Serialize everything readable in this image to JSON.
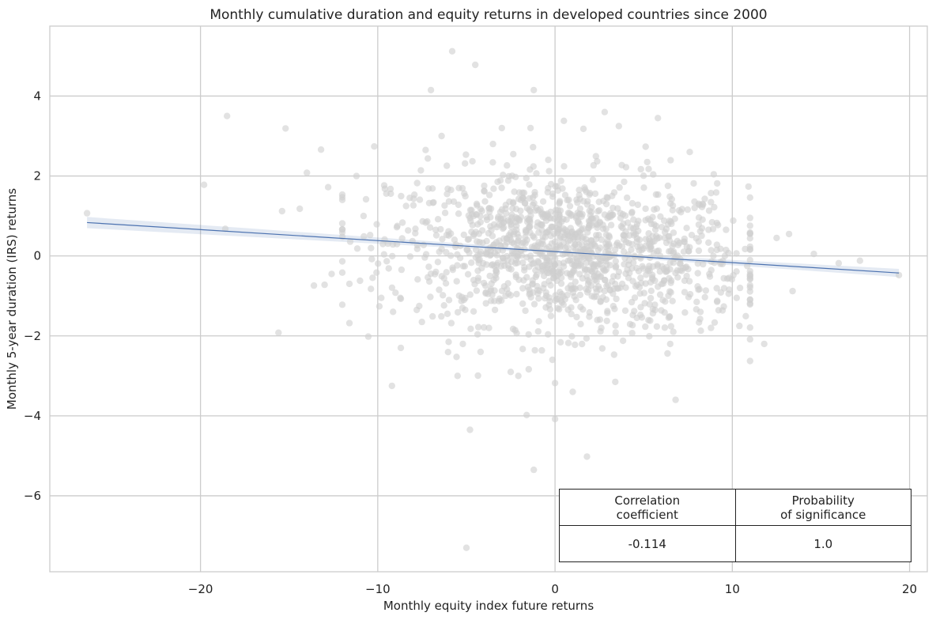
{
  "chart_data": {
    "type": "scatter",
    "title": "Monthly cumulative duration and equity returns in developed countries since 2000",
    "xlabel": "Monthly equity index future returns",
    "ylabel": "Monthly 5-year duration (IRS) returns",
    "xlim": [
      -28.5,
      21.0
    ],
    "ylim": [
      -7.9,
      5.75
    ],
    "xticks": [
      -20,
      -10,
      0,
      10,
      20
    ],
    "xtick_labels": [
      "−20",
      "−10",
      "0",
      "10",
      "20"
    ],
    "yticks": [
      -6,
      -4,
      -2,
      0,
      2,
      4
    ],
    "ytick_labels": [
      "−6",
      "−4",
      "−2",
      "0",
      "2",
      "4"
    ],
    "grid": true,
    "point_color": "#cfcfcf",
    "regression_color": "#4c72b0",
    "regression": {
      "slope": -0.02754,
      "intercept": 0.1086,
      "x_range": [
        -26.4,
        19.4
      ],
      "ci_halfwidth_edge": 0.14,
      "ci_center_x": 1.5
    },
    "points": [
      [
        -26.4,
        1.07
      ],
      [
        -19.8,
        1.78
      ],
      [
        -18.5,
        3.5
      ],
      [
        -18.6,
        0.68
      ],
      [
        -15.2,
        3.19
      ],
      [
        -15.4,
        1.12
      ],
      [
        -15.6,
        -1.92
      ],
      [
        -14.4,
        1.18
      ],
      [
        -14.0,
        2.08
      ],
      [
        -13.6,
        -0.74
      ],
      [
        -13.0,
        -0.72
      ],
      [
        -13.2,
        2.66
      ],
      [
        -12.8,
        1.72
      ],
      [
        -12.6,
        -0.45
      ],
      [
        -11.2,
        2.0
      ],
      [
        -11.0,
        -0.62
      ],
      [
        -11.6,
        -1.68
      ],
      [
        -10.8,
        1.0
      ],
      [
        -10.2,
        2.74
      ],
      [
        -9.8,
        -1.05
      ],
      [
        -9.6,
        1.68
      ],
      [
        -9.2,
        -3.25
      ],
      [
        -9.0,
        -0.92
      ],
      [
        -8.7,
        -2.3
      ],
      [
        -8.4,
        1.25
      ],
      [
        -7.8,
        -1.35
      ],
      [
        -7.3,
        2.65
      ],
      [
        -7.0,
        4.15
      ],
      [
        -6.4,
        3.0
      ],
      [
        -6.0,
        -2.15
      ],
      [
        -5.8,
        5.12
      ],
      [
        -5.5,
        -3.0
      ],
      [
        -5.2,
        -2.2
      ],
      [
        -5.0,
        -7.3
      ],
      [
        -4.8,
        -4.35
      ],
      [
        -4.5,
        4.78
      ],
      [
        -4.2,
        -2.4
      ],
      [
        -3.5,
        2.8
      ],
      [
        -3.0,
        3.2
      ],
      [
        -2.5,
        -2.9
      ],
      [
        -1.6,
        -3.98
      ],
      [
        -1.2,
        4.15
      ],
      [
        -1.2,
        -5.35
      ],
      [
        0.0,
        -3.18
      ],
      [
        0.0,
        -4.08
      ],
      [
        0.5,
        3.38
      ],
      [
        1.0,
        -3.4
      ],
      [
        1.6,
        3.18
      ],
      [
        1.8,
        -5.02
      ],
      [
        2.8,
        3.6
      ],
      [
        3.4,
        -3.15
      ],
      [
        3.6,
        3.25
      ],
      [
        5.2,
        2.35
      ],
      [
        5.8,
        3.45
      ],
      [
        6.5,
        -2.2
      ],
      [
        6.8,
        -3.6
      ],
      [
        7.6,
        2.6
      ],
      [
        8.2,
        -1.4
      ],
      [
        8.8,
        -1.8
      ],
      [
        10.4,
        -1.75
      ],
      [
        11.8,
        -2.2
      ],
      [
        12.5,
        0.45
      ],
      [
        13.2,
        0.55
      ],
      [
        13.4,
        -0.88
      ],
      [
        14.6,
        0.05
      ],
      [
        16.0,
        -0.18
      ],
      [
        17.2,
        -0.12
      ],
      [
        19.4,
        -0.48
      ]
    ],
    "cloud_count": 1350,
    "cloud_center": [
      0.8,
      0.1
    ],
    "cloud_spread": [
      5.0,
      0.95
    ]
  },
  "table": {
    "headers": [
      [
        "Correlation",
        "coefficient"
      ],
      [
        "Probability",
        "of significance"
      ]
    ],
    "values": [
      "-0.114",
      "1.0"
    ]
  }
}
